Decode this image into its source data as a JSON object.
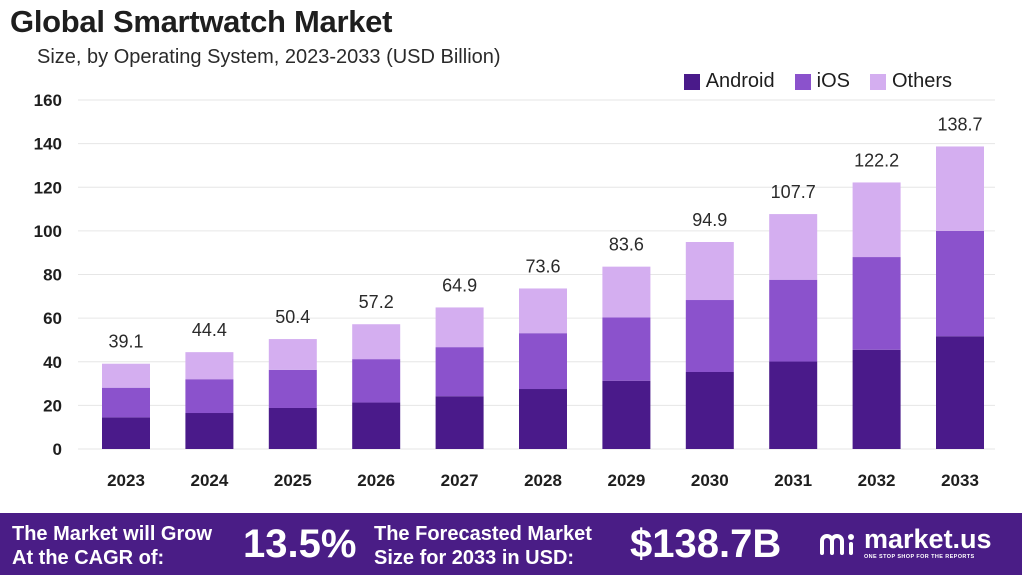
{
  "header": {
    "title": "Global Smartwatch Market",
    "subtitle": "Size, by Operating System, 2023-2033 (USD Billion)"
  },
  "colors": {
    "android": "#4a1a8a",
    "ios": "#8b52cc",
    "others": "#d4aef0",
    "footer_bg": "#4a1d86"
  },
  "chart_data": {
    "type": "bar",
    "stacked": true,
    "title": "Global Smartwatch Market",
    "subtitle": "Size, by Operating System, 2023-2033 (USD Billion)",
    "xlabel": "",
    "ylabel": "",
    "ylim": [
      0,
      160
    ],
    "yticks": [
      "0",
      "20",
      "40",
      "60",
      "80",
      "100",
      "120",
      "140",
      "160"
    ],
    "grid": true,
    "legend_position": "top-right",
    "categories": [
      "2023",
      "2024",
      "2025",
      "2026",
      "2027",
      "2028",
      "2029",
      "2030",
      "2031",
      "2032",
      "2033"
    ],
    "series": [
      {
        "name": "Android",
        "color": "#4a1a8a",
        "values": [
          14.5,
          16.5,
          18.8,
          21.3,
          24.2,
          27.5,
          31.3,
          35.3,
          40.1,
          45.5,
          51.7
        ]
      },
      {
        "name": "iOS",
        "color": "#8b52cc",
        "values": [
          13.6,
          15.5,
          17.5,
          19.9,
          22.5,
          25.6,
          29.0,
          33.0,
          37.5,
          42.5,
          48.3
        ]
      },
      {
        "name": "Others",
        "color": "#d4aef0",
        "values": [
          11.0,
          12.4,
          14.1,
          16.0,
          18.2,
          20.5,
          23.3,
          26.6,
          30.1,
          34.2,
          38.7
        ]
      }
    ],
    "totals": [
      39.1,
      44.4,
      50.4,
      57.2,
      64.9,
      73.6,
      83.6,
      94.9,
      107.7,
      122.2,
      138.7
    ],
    "total_labels": [
      "39.1",
      "44.4",
      "50.4",
      "57.2",
      "64.9",
      "73.6",
      "83.6",
      "94.9",
      "107.7",
      "122.2",
      "138.7"
    ]
  },
  "legend": {
    "android": "Android",
    "ios": "iOS",
    "others": "Others"
  },
  "footer": {
    "cagr_label_line1": "The Market will Grow",
    "cagr_label_line2": "At the CAGR of:",
    "cagr_value": "13.5%",
    "forecast_label_line1": "The Forecasted Market",
    "forecast_label_line2": "Size for 2033 in USD:",
    "forecast_value": "$138.7B",
    "brand_name": "market.us",
    "brand_tagline": "ONE STOP SHOP FOR THE REPORTS"
  }
}
